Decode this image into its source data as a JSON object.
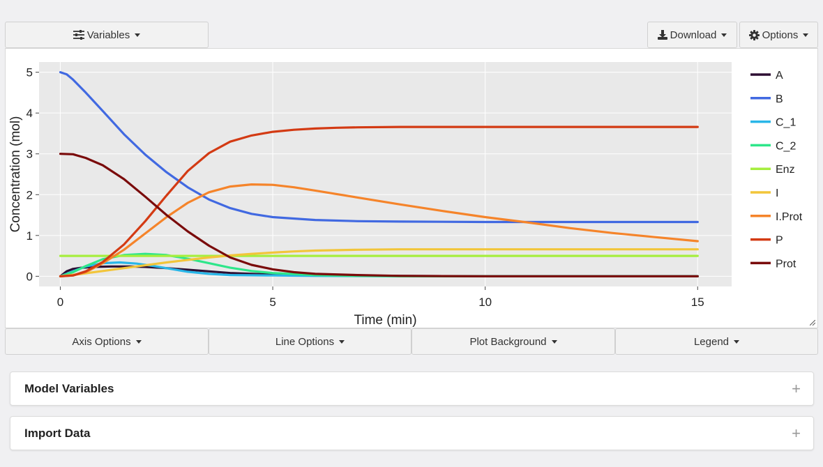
{
  "toolbar": {
    "variables_label": "Variables",
    "download_label": "Download",
    "options_label": "Options"
  },
  "plot_options": {
    "axis_label": "Axis Options",
    "line_label": "Line Options",
    "background_label": "Plot Background",
    "legend_label": "Legend"
  },
  "cards": {
    "model_variables": "Model Variables",
    "import_data": "Import Data",
    "expand_symbol": "+"
  },
  "icons": {
    "variables": "sliders-icon",
    "download": "download-icon",
    "options": "gear-icon",
    "resize": "resize-handle-icon"
  },
  "colors": {
    "plot_bg": "#e9e9e9",
    "grid": "#ffffff"
  },
  "chart_data": {
    "type": "line",
    "title": "",
    "xlabel": "Time (min)",
    "ylabel": "Concentration (mol)",
    "xlim": [
      -0.5,
      15.8
    ],
    "ylim": [
      -0.25,
      5.25
    ],
    "xticks": [
      0,
      5,
      10,
      15
    ],
    "yticks": [
      0,
      1,
      2,
      3,
      4,
      5
    ],
    "grid": true,
    "legend_position": "right",
    "series": [
      {
        "name": "A",
        "color": "#2d0f33",
        "x": [
          0,
          0.15,
          0.3,
          0.5,
          0.8,
          1.2,
          1.6,
          2,
          2.5,
          3,
          3.5,
          4,
          5,
          6,
          8,
          10,
          15
        ],
        "y": [
          0,
          0.12,
          0.18,
          0.21,
          0.23,
          0.24,
          0.24,
          0.23,
          0.2,
          0.16,
          0.12,
          0.08,
          0.04,
          0.02,
          0.01,
          0,
          0
        ]
      },
      {
        "name": "B",
        "color": "#4169e1",
        "x": [
          0,
          0.15,
          0.3,
          0.6,
          1,
          1.5,
          2,
          2.5,
          3,
          3.5,
          4,
          4.5,
          5,
          6,
          7,
          8,
          10,
          12,
          15
        ],
        "y": [
          5,
          4.95,
          4.82,
          4.5,
          4.05,
          3.48,
          2.98,
          2.55,
          2.18,
          1.88,
          1.67,
          1.53,
          1.45,
          1.38,
          1.35,
          1.34,
          1.33,
          1.33,
          1.33
        ]
      },
      {
        "name": "C_1",
        "color": "#29b6e8",
        "x": [
          0,
          0.3,
          0.6,
          1,
          1.4,
          1.8,
          2.2,
          2.6,
          3,
          3.5,
          4,
          5,
          6,
          8,
          15
        ],
        "y": [
          0,
          0.12,
          0.24,
          0.32,
          0.34,
          0.31,
          0.25,
          0.18,
          0.11,
          0.06,
          0.03,
          0.02,
          0.01,
          0,
          0
        ]
      },
      {
        "name": "C_2",
        "color": "#2ee68a",
        "x": [
          0,
          0.3,
          0.6,
          1,
          1.5,
          2,
          2.5,
          3,
          3.5,
          4,
          4.5,
          5,
          6,
          7,
          8,
          15
        ],
        "y": [
          0,
          0.1,
          0.25,
          0.42,
          0.52,
          0.55,
          0.52,
          0.43,
          0.32,
          0.21,
          0.13,
          0.08,
          0.03,
          0.01,
          0,
          0
        ]
      },
      {
        "name": "Enz",
        "color": "#a6ee3f",
        "x": [
          0,
          15
        ],
        "y": [
          0.5,
          0.5
        ]
      },
      {
        "name": "I",
        "color": "#f2c53a",
        "x": [
          0,
          0.5,
          1,
          1.5,
          2,
          2.5,
          3,
          3.5,
          4,
          4.5,
          5,
          5.5,
          6,
          7,
          8,
          10,
          12,
          15
        ],
        "y": [
          0,
          0.06,
          0.13,
          0.2,
          0.27,
          0.34,
          0.4,
          0.46,
          0.51,
          0.55,
          0.58,
          0.61,
          0.63,
          0.65,
          0.66,
          0.66,
          0.66,
          0.66
        ]
      },
      {
        "name": "I.Prot",
        "color": "#f5842a",
        "x": [
          0,
          0.3,
          0.6,
          1,
          1.5,
          2,
          2.5,
          3,
          3.5,
          4,
          4.5,
          5,
          5.5,
          6,
          7,
          8,
          9,
          10,
          11,
          12,
          13,
          14,
          15
        ],
        "y": [
          0,
          0.02,
          0.1,
          0.32,
          0.65,
          1.05,
          1.45,
          1.8,
          2.06,
          2.2,
          2.25,
          2.24,
          2.18,
          2.1,
          1.93,
          1.76,
          1.6,
          1.45,
          1.32,
          1.18,
          1.06,
          0.96,
          0.86
        ]
      },
      {
        "name": "P",
        "color": "#d33a13",
        "x": [
          0,
          0.3,
          0.6,
          1,
          1.5,
          2,
          2.5,
          3,
          3.5,
          4,
          4.5,
          5,
          5.5,
          6,
          6.5,
          7,
          8,
          10,
          12,
          15
        ],
        "y": [
          0,
          0.02,
          0.12,
          0.35,
          0.78,
          1.35,
          1.98,
          2.58,
          3.02,
          3.3,
          3.45,
          3.54,
          3.59,
          3.62,
          3.64,
          3.65,
          3.66,
          3.66,
          3.66,
          3.66
        ]
      },
      {
        "name": "Prot",
        "color": "#7a0b0b",
        "x": [
          0,
          0.3,
          0.6,
          1,
          1.5,
          2,
          2.5,
          3,
          3.5,
          4,
          4.5,
          5,
          5.5,
          6,
          7,
          8,
          10,
          15
        ],
        "y": [
          3,
          2.99,
          2.9,
          2.72,
          2.38,
          1.95,
          1.5,
          1.1,
          0.75,
          0.46,
          0.28,
          0.17,
          0.1,
          0.06,
          0.03,
          0.01,
          0,
          0
        ]
      }
    ]
  }
}
